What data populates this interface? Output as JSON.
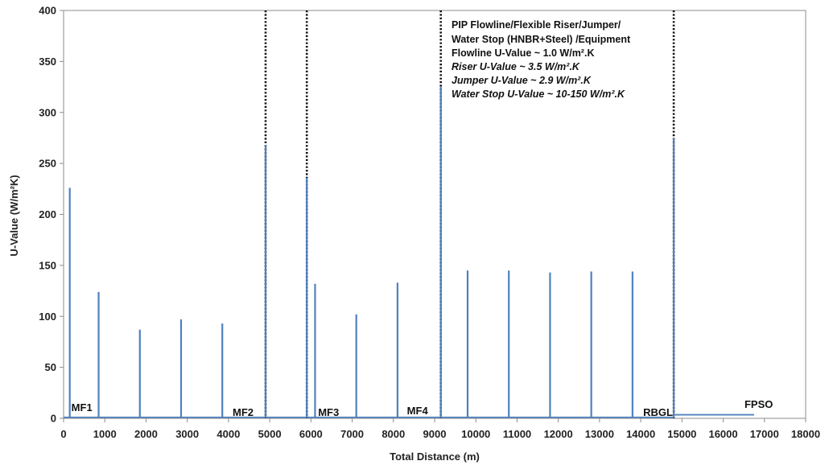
{
  "chart_data": {
    "type": "line",
    "title": "",
    "xlabel": "Total Distance (m)",
    "ylabel": "U-Value (W/m²K)",
    "xlim": [
      0,
      18000
    ],
    "ylim": [
      0,
      400
    ],
    "x_ticks": [
      0,
      1000,
      2000,
      3000,
      4000,
      5000,
      6000,
      7000,
      8000,
      9000,
      10000,
      11000,
      12000,
      13000,
      14000,
      15000,
      16000,
      17000,
      18000
    ],
    "y_ticks": [
      0,
      50,
      100,
      150,
      200,
      250,
      300,
      350,
      400
    ],
    "grid": false,
    "legend": "none",
    "series_color": "#4f81bd",
    "baseline_value": 1.0,
    "spikes": [
      {
        "x": 150,
        "y": 226
      },
      {
        "x": 850,
        "y": 124
      },
      {
        "x": 1850,
        "y": 87
      },
      {
        "x": 2850,
        "y": 97
      },
      {
        "x": 3850,
        "y": 93
      },
      {
        "x": 4900,
        "y": 268
      },
      {
        "x": 5900,
        "y": 236
      },
      {
        "x": 6100,
        "y": 132
      },
      {
        "x": 7100,
        "y": 102
      },
      {
        "x": 8100,
        "y": 133
      },
      {
        "x": 9150,
        "y": 325
      },
      {
        "x": 9800,
        "y": 145
      },
      {
        "x": 10800,
        "y": 145
      },
      {
        "x": 11800,
        "y": 143
      },
      {
        "x": 12800,
        "y": 144
      },
      {
        "x": 13800,
        "y": 144
      },
      {
        "x": 14800,
        "y": 275
      }
    ],
    "tail_segment": {
      "x_start": 14800,
      "x_end": 16750,
      "y": 3.5
    },
    "dividers": [
      4900,
      5900,
      9150,
      14800
    ],
    "stations": [
      {
        "label": "MF1",
        "x": 150
      },
      {
        "label": "MF2",
        "x": 4900
      },
      {
        "label": "MF3",
        "x": 5900
      },
      {
        "label": "MF4",
        "x": 9150
      },
      {
        "label": "RBGL",
        "x": 14800
      },
      {
        "label": "FPSO",
        "x": 16750
      }
    ],
    "annotation_lines": [
      "PIP Flowline/Flexible Riser/Jumper/",
      "Water Stop (HNBR+Steel) /Equipment",
      "Flowline U-Value ~ 1.0 W/m².K",
      "Riser U-Value ~ 3.5 W/m².K",
      "Jumper U-Value ~ 2.9 W/m².K",
      "Water Stop U-Value ~ 10-150 W/m².K"
    ]
  }
}
